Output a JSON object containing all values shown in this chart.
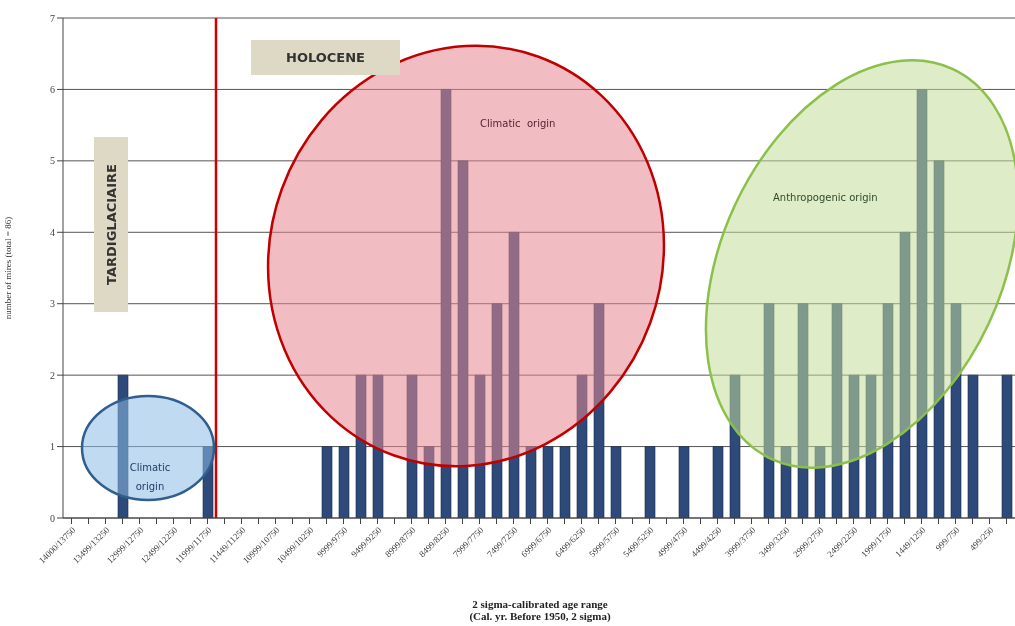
{
  "chart_data": {
    "type": "bar",
    "categories": [
      "14000/13750",
      null,
      "13499/13250",
      null,
      "12999/12750",
      null,
      "12499/12250",
      null,
      "11999/11750",
      null,
      "11449/11250",
      null,
      "10999/10750",
      null,
      "10499/10250",
      null,
      "9999/9750",
      null,
      "9499/9250",
      null,
      "8999/8750",
      null,
      "8499/8250",
      null,
      "7999/7750",
      null,
      "7499/7250",
      null,
      "6999/6750",
      null,
      "6499/6250",
      null,
      "5999/5750",
      null,
      "5499/5250",
      null,
      "4999/4750",
      null,
      "4499/4250",
      null,
      "3999/3750",
      null,
      "3499/3250",
      null,
      "2999/2750",
      null,
      "2499/2250",
      null,
      "1999/1750",
      null,
      "1449/1250",
      null,
      "999/750",
      null,
      "499/250",
      null
    ],
    "values": [
      null,
      null,
      null,
      2,
      null,
      null,
      null,
      null,
      1,
      null,
      null,
      null,
      null,
      null,
      null,
      1,
      1,
      2,
      2,
      null,
      2,
      1,
      6,
      5,
      2,
      3,
      4,
      1,
      1,
      1,
      2,
      3,
      1,
      null,
      1,
      null,
      1,
      null,
      1,
      2,
      null,
      3,
      1,
      3,
      1,
      3,
      2,
      2,
      3,
      4,
      6,
      5,
      3,
      2,
      null,
      2
    ],
    "color": "#2e4a7a",
    "ylim": [
      0,
      7
    ],
    "yticks": [
      0,
      1,
      2,
      3,
      4,
      5,
      6,
      7
    ],
    "grid": "y",
    "xlabel": "2 sigma-calibrated age range\n(Cal. yr. Before 1950, 2 sigma)",
    "ylabel": "number of mires (total = 86)",
    "ref_lines": [
      {
        "axis": "x",
        "value": "11999/11750",
        "color": "#d00000"
      }
    ],
    "annotations": [
      "TARDIGLACIAIRE",
      "HOLOCENE",
      "Climatic\norigin",
      "Climatic  origin",
      "Anthropogenic origin"
    ]
  }
}
